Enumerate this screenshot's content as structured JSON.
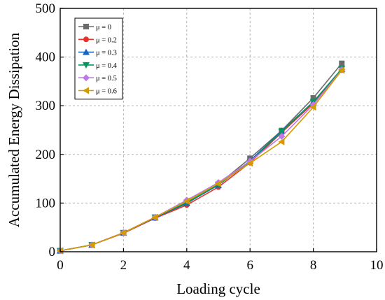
{
  "chart_data": {
    "type": "line",
    "title": "",
    "xlabel": "Loading cycle",
    "ylabel": "Accumulated Energy Dissipation",
    "xlim": [
      0,
      10
    ],
    "ylim": [
      0,
      500
    ],
    "xticks": [
      "0",
      "2",
      "4",
      "6",
      "8",
      "10"
    ],
    "yticks": [
      "0",
      "100",
      "200",
      "300",
      "400",
      "500"
    ],
    "grid": true,
    "legend_position": "top-left",
    "x": [
      0,
      1,
      2,
      3,
      4,
      5,
      6,
      7,
      8,
      8.9
    ],
    "series": [
      {
        "name": "μ = 0",
        "color": "#6b6b6b",
        "marker": "square",
        "values": [
          2,
          14,
          39,
          70,
          99,
          139,
          192,
          249,
          316,
          387
        ]
      },
      {
        "name": "μ = 0.2",
        "color": "#e8322c",
        "marker": "circle",
        "values": [
          2,
          14,
          38,
          69,
          96,
          133,
          183,
          245,
          305,
          373
        ]
      },
      {
        "name": "μ = 0.3",
        "color": "#1565c0",
        "marker": "triangle-up",
        "values": [
          2,
          14,
          39,
          70,
          100,
          137,
          187,
          248,
          308,
          375
        ]
      },
      {
        "name": "μ = 0.4",
        "color": "#00995e",
        "marker": "triangle-down",
        "values": [
          2,
          14,
          39,
          71,
          101,
          138,
          185,
          247,
          308,
          376
        ]
      },
      {
        "name": "μ = 0.5",
        "color": "#c077e8",
        "marker": "diamond",
        "values": [
          2,
          14,
          39,
          71,
          106,
          142,
          186,
          237,
          302,
          374
        ]
      },
      {
        "name": "μ = 0.6",
        "color": "#d49b00",
        "marker": "triangle-left",
        "values": [
          2,
          14,
          39,
          71,
          104,
          140,
          182,
          226,
          297,
          373
        ]
      }
    ]
  }
}
